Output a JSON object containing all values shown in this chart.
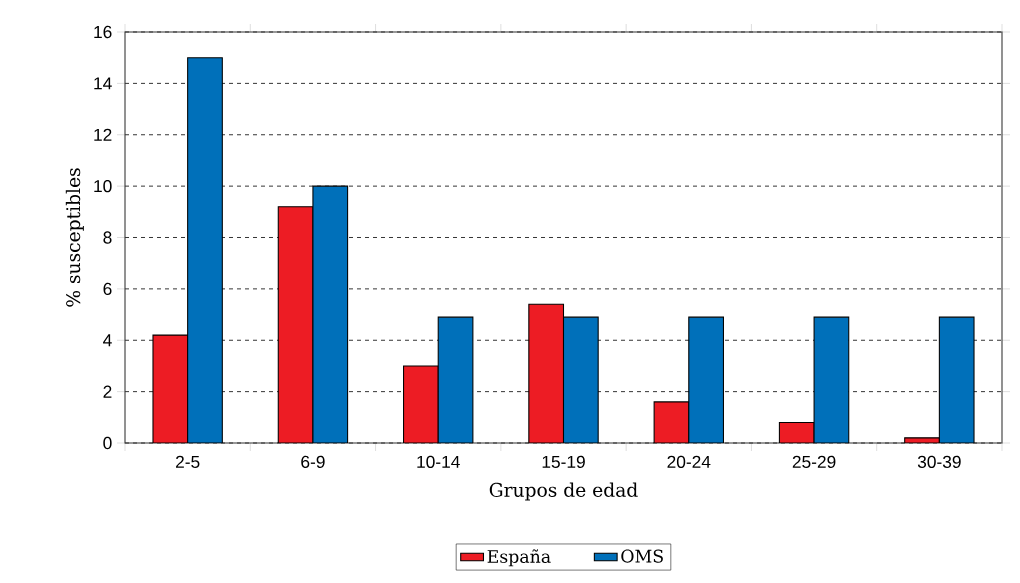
{
  "chart_data": {
    "type": "bar",
    "xlabel": "Grupos de edad",
    "ylabel": "% susceptibles",
    "categories": [
      "2-5",
      "6-9",
      "10-14",
      "15-19",
      "20-24",
      "25-29",
      "30-39"
    ],
    "series": [
      {
        "name": "España",
        "color": "#ed1c24",
        "values": [
          4.2,
          9.2,
          3.0,
          5.4,
          1.6,
          0.8,
          0.2
        ]
      },
      {
        "name": "OMS",
        "color": "#0070ba",
        "values": [
          15,
          10,
          4.9,
          4.9,
          4.9,
          4.9,
          4.9
        ]
      }
    ],
    "ylim": [
      0,
      16
    ],
    "yticks": [
      0,
      2,
      4,
      6,
      8,
      10,
      12,
      14,
      16
    ],
    "grid": "y",
    "legend": "bottom"
  }
}
